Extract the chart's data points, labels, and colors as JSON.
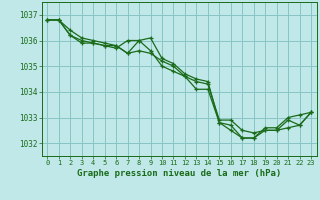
{
  "title": "Graphe pression niveau de la mer (hPa)",
  "bg_color": "#c0e8e8",
  "grid_color": "#88c4c4",
  "line_color": "#1a6b1a",
  "spine_color": "#1a6b1a",
  "xlim": [
    -0.5,
    23.5
  ],
  "ylim": [
    1031.5,
    1037.5
  ],
  "yticks": [
    1032,
    1033,
    1034,
    1035,
    1036,
    1037
  ],
  "xticks": [
    0,
    1,
    2,
    3,
    4,
    5,
    6,
    7,
    8,
    9,
    10,
    11,
    12,
    13,
    14,
    15,
    16,
    17,
    18,
    19,
    20,
    21,
    22,
    23
  ],
  "series": [
    [
      1036.8,
      1036.8,
      1036.4,
      1036.1,
      1036.0,
      1035.9,
      1035.8,
      1035.5,
      1036.0,
      1036.1,
      1035.3,
      1035.1,
      1034.7,
      1034.5,
      1034.4,
      1032.8,
      1032.7,
      1032.2,
      1032.2,
      1032.6,
      1032.6,
      1033.0,
      1033.1,
      1033.2
    ],
    [
      1036.8,
      1036.8,
      1036.2,
      1036.0,
      1035.9,
      1035.8,
      1035.8,
      1035.5,
      1035.6,
      1035.5,
      1035.2,
      1035.0,
      1034.6,
      1034.4,
      1034.3,
      1032.9,
      1032.9,
      1032.5,
      1032.4,
      1032.5,
      1032.5,
      1032.6,
      1032.7,
      1033.2
    ],
    [
      1036.8,
      1036.8,
      1036.2,
      1035.9,
      1035.9,
      1035.8,
      1035.7,
      1036.0,
      1036.0,
      1035.6,
      1035.0,
      1034.8,
      1034.6,
      1034.1,
      1034.1,
      1032.8,
      1032.5,
      1032.2,
      1032.2,
      1032.5,
      1032.5,
      1032.9,
      1032.7,
      1033.2
    ]
  ]
}
